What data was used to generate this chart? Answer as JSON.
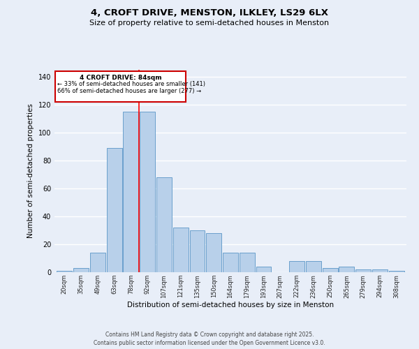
{
  "title_line1": "4, CROFT DRIVE, MENSTON, ILKLEY, LS29 6LX",
  "title_line2": "Size of property relative to semi-detached houses in Menston",
  "xlabel": "Distribution of semi-detached houses by size in Menston",
  "ylabel": "Number of semi-detached properties",
  "categories": [
    "20sqm",
    "35sqm",
    "49sqm",
    "63sqm",
    "78sqm",
    "92sqm",
    "107sqm",
    "121sqm",
    "135sqm",
    "150sqm",
    "164sqm",
    "179sqm",
    "193sqm",
    "207sqm",
    "222sqm",
    "236sqm",
    "250sqm",
    "265sqm",
    "279sqm",
    "294sqm",
    "308sqm"
  ],
  "values": [
    1,
    3,
    14,
    89,
    115,
    115,
    68,
    32,
    30,
    28,
    14,
    14,
    4,
    0,
    8,
    8,
    3,
    4,
    2,
    2,
    1
  ],
  "bar_color": "#b8d0ea",
  "bar_edge_color": "#6aa0cc",
  "bg_color": "#e8eef8",
  "grid_color": "#ffffff",
  "annotation_title": "4 CROFT DRIVE: 84sqm",
  "annotation_line2": "← 33% of semi-detached houses are smaller (141)",
  "annotation_line3": "66% of semi-detached houses are larger (277) →",
  "annotation_box_color": "#cc0000",
  "ylim": [
    0,
    145
  ],
  "yticks": [
    0,
    20,
    40,
    60,
    80,
    100,
    120,
    140
  ],
  "prop_line_index": 4.5,
  "footer_line1": "Contains HM Land Registry data © Crown copyright and database right 2025.",
  "footer_line2": "Contains public sector information licensed under the Open Government Licence v3.0."
}
